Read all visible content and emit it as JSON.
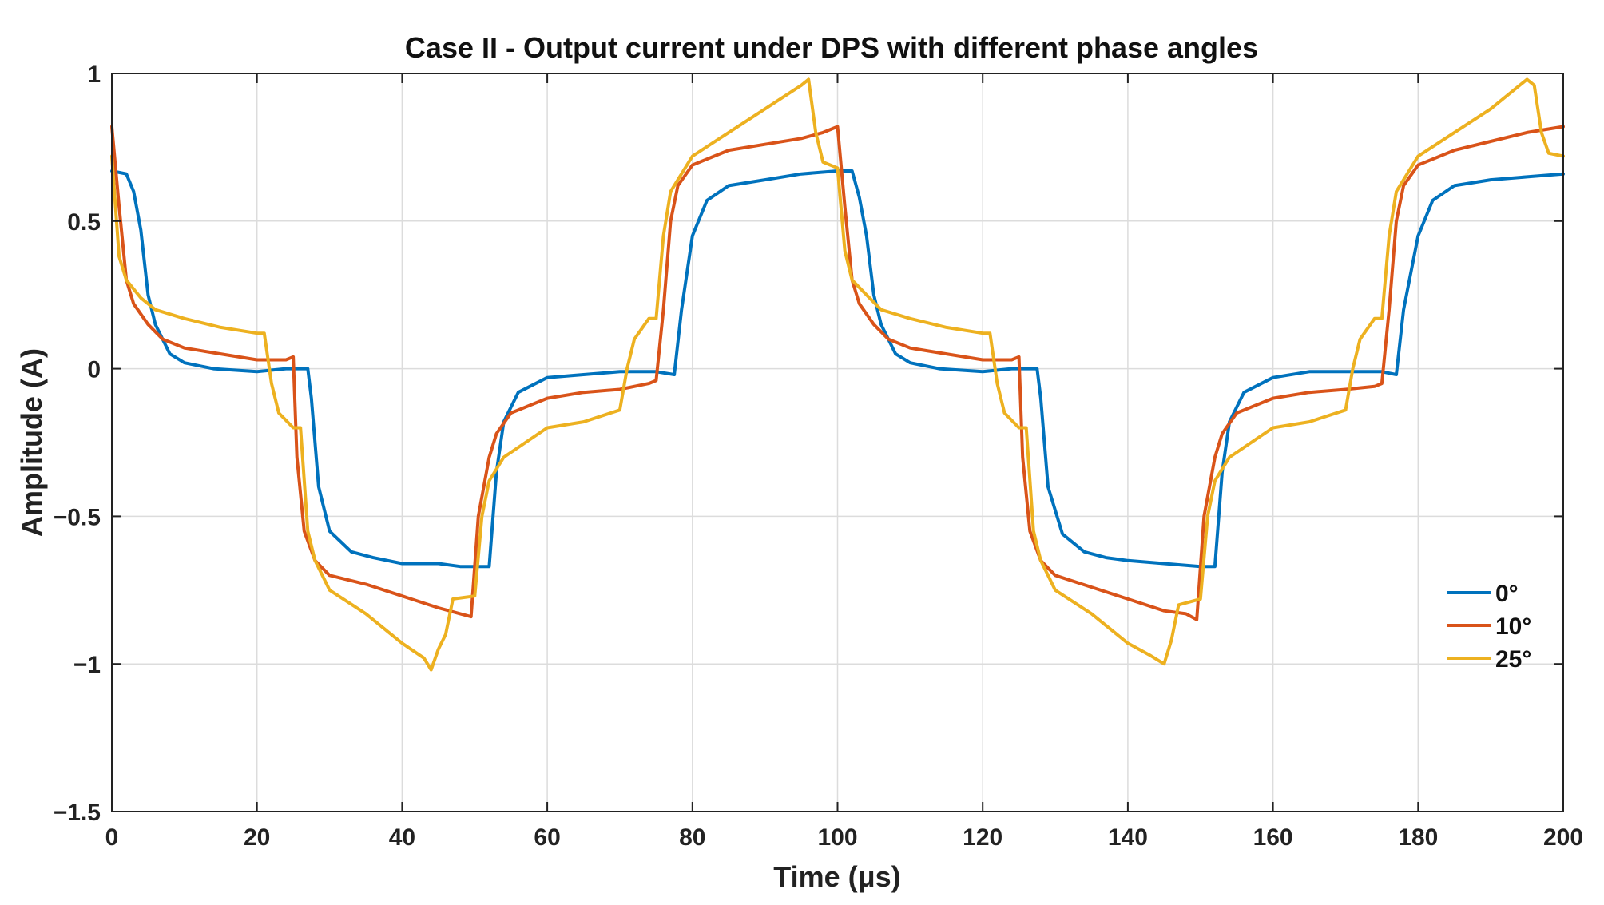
{
  "chart_data": {
    "type": "line",
    "title": "Case II - Output current under DPS with different phase angles",
    "xlabel": "Time (μs)",
    "ylabel": "Amplitude (A)",
    "xlim": [
      0,
      200
    ],
    "ylim": [
      -1.5,
      1
    ],
    "xticks": [
      0,
      20,
      40,
      60,
      80,
      100,
      120,
      140,
      160,
      180,
      200
    ],
    "xtick_labels": [
      "0",
      "20",
      "40",
      "60",
      "80",
      "100",
      "120",
      "140",
      "160",
      "180",
      "200"
    ],
    "yticks": [
      1,
      0.5,
      0,
      -0.5,
      -1,
      -1.5
    ],
    "ytick_labels": [
      "1",
      "0.5",
      "0",
      "−0.5",
      "−1",
      "−1.5"
    ],
    "grid": true,
    "legend_position": "right",
    "colors": {
      "blue": "#0072BD",
      "red": "#D95319",
      "yellow": "#EDB120"
    },
    "series": [
      {
        "name": "0°",
        "color": "#0072BD",
        "points": [
          [
            0,
            0.67
          ],
          [
            2,
            0.66
          ],
          [
            3,
            0.6
          ],
          [
            4,
            0.47
          ],
          [
            5,
            0.25
          ],
          [
            6,
            0.15
          ],
          [
            8,
            0.05
          ],
          [
            10,
            0.02
          ],
          [
            14,
            0
          ],
          [
            20,
            -0.01
          ],
          [
            24,
            0
          ],
          [
            26,
            0
          ],
          [
            27,
            0
          ],
          [
            27.5,
            -0.1
          ],
          [
            28.5,
            -0.4
          ],
          [
            30,
            -0.55
          ],
          [
            33,
            -0.62
          ],
          [
            36,
            -0.64
          ],
          [
            40,
            -0.66
          ],
          [
            45,
            -0.66
          ],
          [
            48,
            -0.67
          ],
          [
            51,
            -0.67
          ],
          [
            52,
            -0.67
          ],
          [
            53,
            -0.35
          ],
          [
            54,
            -0.18
          ],
          [
            56,
            -0.08
          ],
          [
            60,
            -0.03
          ],
          [
            65,
            -0.02
          ],
          [
            70,
            -0.01
          ],
          [
            75,
            -0.01
          ],
          [
            77.5,
            -0.02
          ],
          [
            78.5,
            0.2
          ],
          [
            80,
            0.45
          ],
          [
            82,
            0.57
          ],
          [
            85,
            0.62
          ],
          [
            90,
            0.64
          ],
          [
            95,
            0.66
          ],
          [
            100,
            0.67
          ],
          [
            102,
            0.67
          ],
          [
            103,
            0.58
          ],
          [
            104,
            0.45
          ],
          [
            105,
            0.25
          ],
          [
            106,
            0.15
          ],
          [
            108,
            0.05
          ],
          [
            110,
            0.02
          ],
          [
            114,
            0
          ],
          [
            120,
            -0.01
          ],
          [
            124,
            0
          ],
          [
            126,
            0
          ],
          [
            127.5,
            0
          ],
          [
            128,
            -0.1
          ],
          [
            129,
            -0.4
          ],
          [
            131,
            -0.56
          ],
          [
            134,
            -0.62
          ],
          [
            137,
            -0.64
          ],
          [
            140,
            -0.65
          ],
          [
            145,
            -0.66
          ],
          [
            150,
            -0.67
          ],
          [
            152,
            -0.67
          ],
          [
            153,
            -0.35
          ],
          [
            154,
            -0.18
          ],
          [
            156,
            -0.08
          ],
          [
            160,
            -0.03
          ],
          [
            165,
            -0.01
          ],
          [
            170,
            -0.01
          ],
          [
            175,
            -0.01
          ],
          [
            177,
            -0.02
          ],
          [
            178,
            0.2
          ],
          [
            180,
            0.45
          ],
          [
            182,
            0.57
          ],
          [
            185,
            0.62
          ],
          [
            190,
            0.64
          ],
          [
            195,
            0.65
          ],
          [
            200,
            0.66
          ]
        ]
      },
      {
        "name": "10°",
        "color": "#D95319",
        "points": [
          [
            0,
            0.82
          ],
          [
            1,
            0.55
          ],
          [
            2,
            0.3
          ],
          [
            3,
            0.22
          ],
          [
            5,
            0.15
          ],
          [
            7,
            0.1
          ],
          [
            10,
            0.07
          ],
          [
            15,
            0.05
          ],
          [
            20,
            0.03
          ],
          [
            24,
            0.03
          ],
          [
            25,
            0.04
          ],
          [
            25.5,
            -0.3
          ],
          [
            26.5,
            -0.55
          ],
          [
            28,
            -0.65
          ],
          [
            30,
            -0.7
          ],
          [
            35,
            -0.73
          ],
          [
            40,
            -0.77
          ],
          [
            45,
            -0.81
          ],
          [
            48,
            -0.83
          ],
          [
            49.5,
            -0.84
          ],
          [
            50.5,
            -0.5
          ],
          [
            52,
            -0.3
          ],
          [
            53,
            -0.22
          ],
          [
            55,
            -0.15
          ],
          [
            60,
            -0.1
          ],
          [
            65,
            -0.08
          ],
          [
            70,
            -0.07
          ],
          [
            74,
            -0.05
          ],
          [
            75,
            -0.04
          ],
          [
            76,
            0.2
          ],
          [
            77,
            0.5
          ],
          [
            78,
            0.62
          ],
          [
            80,
            0.69
          ],
          [
            85,
            0.74
          ],
          [
            90,
            0.76
          ],
          [
            95,
            0.78
          ],
          [
            98,
            0.8
          ],
          [
            100,
            0.82
          ],
          [
            101,
            0.55
          ],
          [
            102,
            0.3
          ],
          [
            103,
            0.22
          ],
          [
            105,
            0.15
          ],
          [
            107,
            0.1
          ],
          [
            110,
            0.07
          ],
          [
            115,
            0.05
          ],
          [
            120,
            0.03
          ],
          [
            124,
            0.03
          ],
          [
            125,
            0.04
          ],
          [
            125.5,
            -0.3
          ],
          [
            126.5,
            -0.55
          ],
          [
            128,
            -0.65
          ],
          [
            130,
            -0.7
          ],
          [
            135,
            -0.74
          ],
          [
            140,
            -0.78
          ],
          [
            145,
            -0.82
          ],
          [
            148,
            -0.83
          ],
          [
            149.5,
            -0.85
          ],
          [
            150.5,
            -0.5
          ],
          [
            152,
            -0.3
          ],
          [
            153,
            -0.22
          ],
          [
            155,
            -0.15
          ],
          [
            160,
            -0.1
          ],
          [
            165,
            -0.08
          ],
          [
            170,
            -0.07
          ],
          [
            174,
            -0.06
          ],
          [
            175,
            -0.05
          ],
          [
            176,
            0.2
          ],
          [
            177,
            0.5
          ],
          [
            178,
            0.62
          ],
          [
            180,
            0.69
          ],
          [
            185,
            0.74
          ],
          [
            190,
            0.77
          ],
          [
            195,
            0.8
          ],
          [
            200,
            0.82
          ]
        ]
      },
      {
        "name": "25°",
        "color": "#EDB120",
        "points": [
          [
            0,
            0.72
          ],
          [
            1,
            0.38
          ],
          [
            2,
            0.3
          ],
          [
            4,
            0.24
          ],
          [
            6,
            0.2
          ],
          [
            10,
            0.17
          ],
          [
            15,
            0.14
          ],
          [
            20,
            0.12
          ],
          [
            21,
            0.12
          ],
          [
            22,
            -0.05
          ],
          [
            23,
            -0.15
          ],
          [
            25,
            -0.2
          ],
          [
            26,
            -0.2
          ],
          [
            27,
            -0.55
          ],
          [
            28,
            -0.65
          ],
          [
            30,
            -0.75
          ],
          [
            35,
            -0.83
          ],
          [
            40,
            -0.93
          ],
          [
            43,
            -0.98
          ],
          [
            44,
            -1.02
          ],
          [
            45,
            -0.95
          ],
          [
            46,
            -0.9
          ],
          [
            47,
            -0.78
          ],
          [
            50,
            -0.77
          ],
          [
            51,
            -0.5
          ],
          [
            52,
            -0.38
          ],
          [
            54,
            -0.3
          ],
          [
            57,
            -0.25
          ],
          [
            60,
            -0.2
          ],
          [
            65,
            -0.18
          ],
          [
            70,
            -0.14
          ],
          [
            71,
            0
          ],
          [
            72,
            0.1
          ],
          [
            74,
            0.17
          ],
          [
            75,
            0.17
          ],
          [
            76,
            0.45
          ],
          [
            77,
            0.6
          ],
          [
            80,
            0.72
          ],
          [
            85,
            0.8
          ],
          [
            90,
            0.88
          ],
          [
            95,
            0.96
          ],
          [
            96,
            0.98
          ],
          [
            97,
            0.8
          ],
          [
            98,
            0.7
          ],
          [
            100,
            0.68
          ],
          [
            101,
            0.4
          ],
          [
            102,
            0.3
          ],
          [
            104,
            0.25
          ],
          [
            106,
            0.2
          ],
          [
            110,
            0.17
          ],
          [
            115,
            0.14
          ],
          [
            120,
            0.12
          ],
          [
            121,
            0.12
          ],
          [
            122,
            -0.05
          ],
          [
            123,
            -0.15
          ],
          [
            125,
            -0.2
          ],
          [
            126,
            -0.2
          ],
          [
            127,
            -0.55
          ],
          [
            128,
            -0.65
          ],
          [
            130,
            -0.75
          ],
          [
            135,
            -0.83
          ],
          [
            140,
            -0.93
          ],
          [
            143,
            -0.97
          ],
          [
            145,
            -1.0
          ],
          [
            146,
            -0.92
          ],
          [
            147,
            -0.8
          ],
          [
            150,
            -0.78
          ],
          [
            151,
            -0.5
          ],
          [
            152,
            -0.38
          ],
          [
            154,
            -0.3
          ],
          [
            157,
            -0.25
          ],
          [
            160,
            -0.2
          ],
          [
            165,
            -0.18
          ],
          [
            170,
            -0.14
          ],
          [
            171,
            0
          ],
          [
            172,
            0.1
          ],
          [
            174,
            0.17
          ],
          [
            175,
            0.17
          ],
          [
            176,
            0.45
          ],
          [
            177,
            0.6
          ],
          [
            180,
            0.72
          ],
          [
            185,
            0.8
          ],
          [
            190,
            0.88
          ],
          [
            195,
            0.98
          ],
          [
            196,
            0.96
          ],
          [
            197,
            0.8
          ],
          [
            198,
            0.73
          ],
          [
            200,
            0.72
          ]
        ]
      }
    ]
  }
}
